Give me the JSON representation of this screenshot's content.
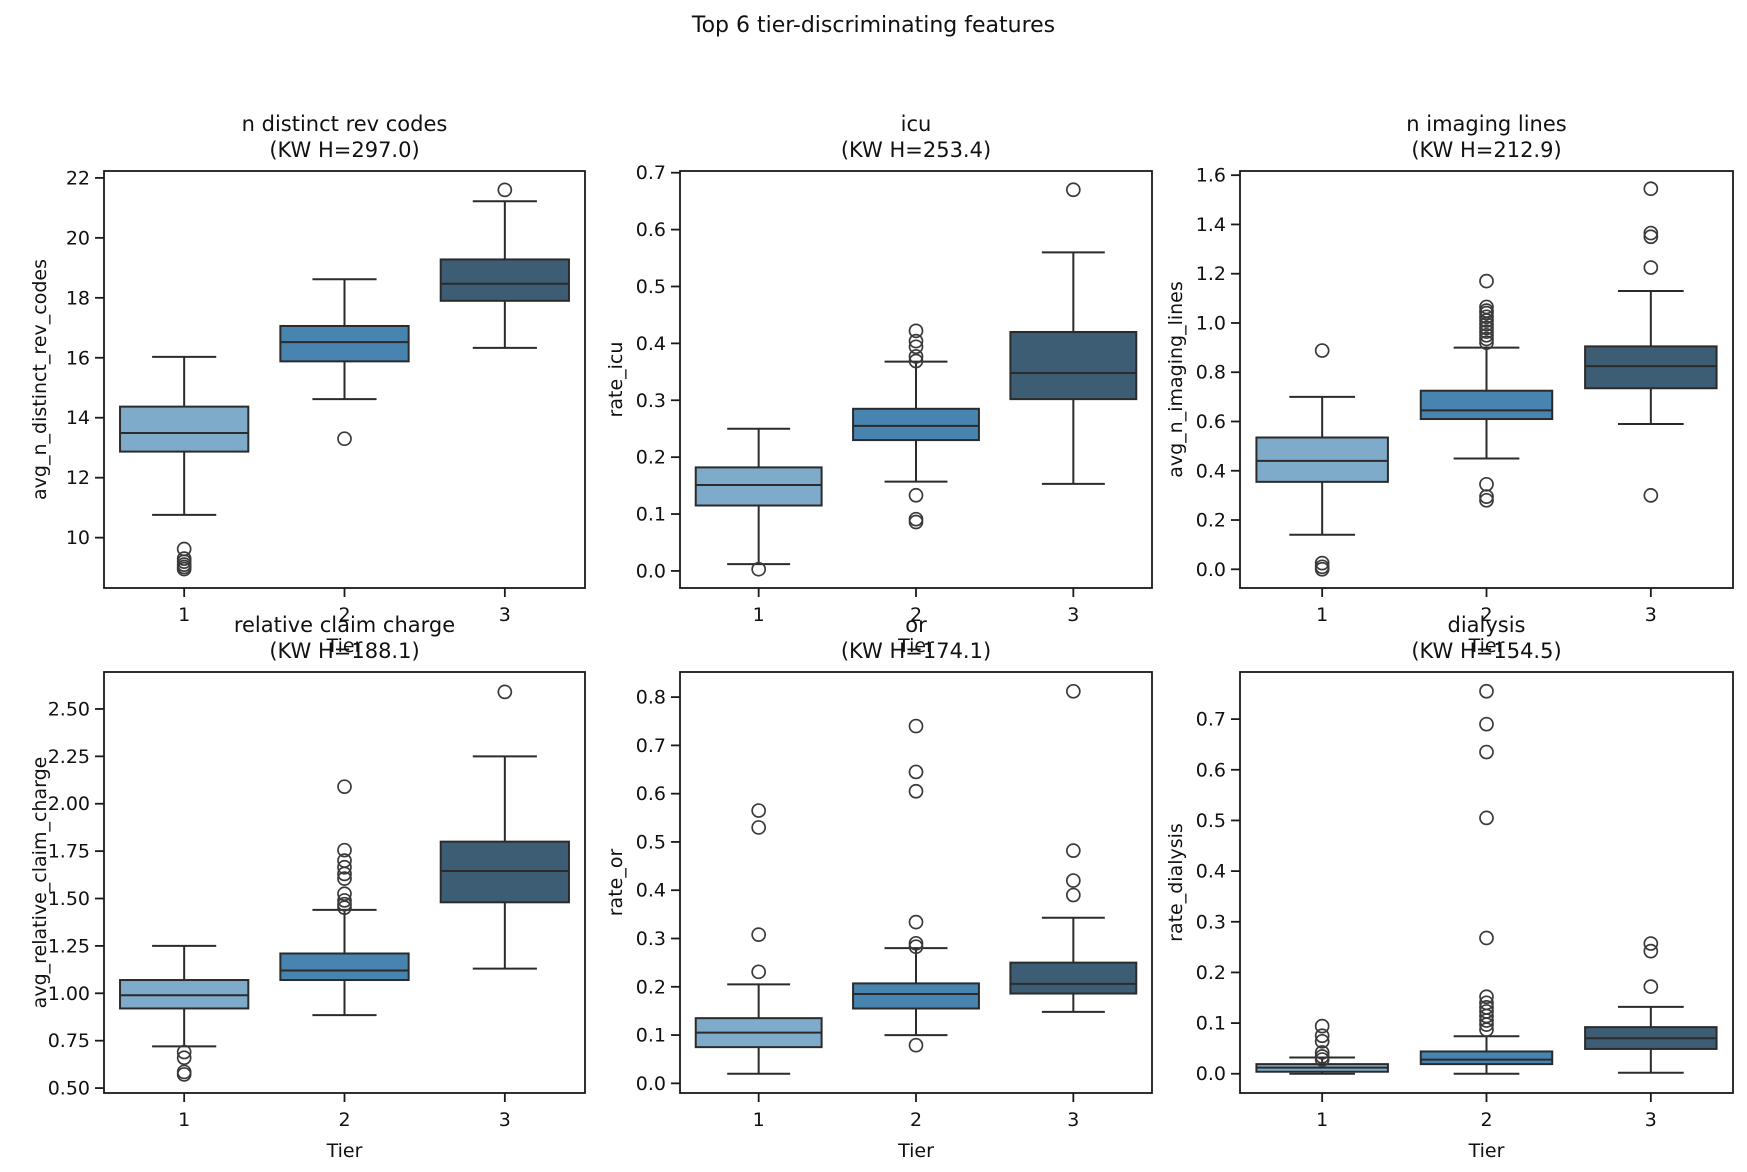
{
  "chart_data": {
    "type": "boxplot",
    "suptitle": "Top 6 tier-discriminating features",
    "grid": {
      "rows": 2,
      "cols": 3
    },
    "xlabel": "Tier",
    "categories": [
      "1",
      "2",
      "3"
    ],
    "palette": [
      "#7FABCB",
      "#4784B0",
      "#3D5D75"
    ],
    "edge_color": "#2B2B2B",
    "flier_color": "#3A3A3A",
    "spine_color": "#1A1A1A",
    "subplots": [
      {
        "id": "n-distinct-rev-codes",
        "title": "n distinct rev codes",
        "subtitle": "(KW H=297.0)",
        "ylabel": "avg_n_distinct_rev_codes",
        "ylim": [
          8.32,
          22.23
        ],
        "yticks": [
          {
            "value": 10,
            "label": "10"
          },
          {
            "value": 12,
            "label": "12"
          },
          {
            "value": 14,
            "label": "14"
          },
          {
            "value": 16,
            "label": "16"
          },
          {
            "value": 18,
            "label": "18"
          },
          {
            "value": 20,
            "label": "20"
          },
          {
            "value": 22,
            "label": "22"
          }
        ],
        "boxes": [
          {
            "tier": "1",
            "whislo": 10.76,
            "q1": 12.87,
            "med": 13.49,
            "q3": 14.37,
            "whishi": 16.03,
            "fliers": [
              9.62,
              9.3,
              9.2,
              9.1,
              9.02,
              8.95
            ]
          },
          {
            "tier": "2",
            "whislo": 14.62,
            "q1": 15.88,
            "med": 16.52,
            "q3": 17.06,
            "whishi": 18.62,
            "fliers": [
              13.3
            ]
          },
          {
            "tier": "3",
            "whislo": 16.33,
            "q1": 17.9,
            "med": 18.47,
            "q3": 19.28,
            "whishi": 21.22,
            "fliers": [
              21.6
            ]
          }
        ]
      },
      {
        "id": "icu",
        "title": "icu",
        "subtitle": "(KW H=253.4)",
        "ylabel": "rate_icu",
        "ylim": [
          -0.03,
          0.703
        ],
        "yticks": [
          {
            "value": 0.0,
            "label": "0.0"
          },
          {
            "value": 0.1,
            "label": "0.1"
          },
          {
            "value": 0.2,
            "label": "0.2"
          },
          {
            "value": 0.3,
            "label": "0.3"
          },
          {
            "value": 0.4,
            "label": "0.4"
          },
          {
            "value": 0.5,
            "label": "0.5"
          },
          {
            "value": 0.6,
            "label": "0.6"
          },
          {
            "value": 0.7,
            "label": "0.7"
          }
        ],
        "boxes": [
          {
            "tier": "1",
            "whislo": 0.012,
            "q1": 0.115,
            "med": 0.151,
            "q3": 0.182,
            "whishi": 0.25,
            "fliers": [
              0.003
            ]
          },
          {
            "tier": "2",
            "whislo": 0.157,
            "q1": 0.23,
            "med": 0.255,
            "q3": 0.285,
            "whishi": 0.368,
            "fliers": [
              0.422,
              0.404,
              0.394,
              0.377,
              0.369,
              0.133,
              0.091,
              0.086
            ]
          },
          {
            "tier": "3",
            "whislo": 0.153,
            "q1": 0.302,
            "med": 0.348,
            "q3": 0.42,
            "whishi": 0.56,
            "fliers": [
              0.67
            ]
          }
        ]
      },
      {
        "id": "n-imaging-lines",
        "title": "n imaging lines",
        "subtitle": "(KW H=212.9)",
        "ylabel": "avg_n_imaging_lines",
        "ylim": [
          -0.076,
          1.617
        ],
        "yticks": [
          {
            "value": 0.0,
            "label": "0.0"
          },
          {
            "value": 0.2,
            "label": "0.2"
          },
          {
            "value": 0.4,
            "label": "0.4"
          },
          {
            "value": 0.6,
            "label": "0.6"
          },
          {
            "value": 0.8,
            "label": "0.8"
          },
          {
            "value": 1.0,
            "label": "1.0"
          },
          {
            "value": 1.2,
            "label": "1.2"
          },
          {
            "value": 1.4,
            "label": "1.4"
          },
          {
            "value": 1.6,
            "label": "1.6"
          }
        ],
        "boxes": [
          {
            "tier": "1",
            "whislo": 0.14,
            "q1": 0.355,
            "med": 0.44,
            "q3": 0.535,
            "whishi": 0.7,
            "fliers": [
              0.888,
              0.025,
              0.01,
              0.0
            ]
          },
          {
            "tier": "2",
            "whislo": 0.45,
            "q1": 0.61,
            "med": 0.645,
            "q3": 0.725,
            "whishi": 0.9,
            "fliers": [
              1.17,
              1.065,
              1.05,
              1.04,
              1.025,
              1.01,
              0.995,
              0.98,
              0.965,
              0.95,
              0.935,
              0.92,
              0.345,
              0.295,
              0.28
            ]
          },
          {
            "tier": "3",
            "whislo": 0.59,
            "q1": 0.735,
            "med": 0.825,
            "q3": 0.905,
            "whishi": 1.13,
            "fliers": [
              1.545,
              1.365,
              1.35,
              1.225,
              0.3
            ]
          }
        ]
      },
      {
        "id": "relative-claim-charge",
        "title": "relative claim charge",
        "subtitle": "(KW H=188.1)",
        "ylabel": "avg_relative_claim_charge",
        "ylim": [
          0.474,
          2.695
        ],
        "yticks": [
          {
            "value": 0.5,
            "label": "0.50"
          },
          {
            "value": 0.75,
            "label": "0.75"
          },
          {
            "value": 1.0,
            "label": "1.00"
          },
          {
            "value": 1.25,
            "label": "1.25"
          },
          {
            "value": 1.5,
            "label": "1.50"
          },
          {
            "value": 1.75,
            "label": "1.75"
          },
          {
            "value": 2.0,
            "label": "2.00"
          },
          {
            "value": 2.25,
            "label": "2.25"
          },
          {
            "value": 2.5,
            "label": "2.50"
          }
        ],
        "boxes": [
          {
            "tier": "1",
            "whislo": 0.72,
            "q1": 0.92,
            "med": 0.99,
            "q3": 1.07,
            "whishi": 1.25,
            "fliers": [
              0.69,
              0.66,
              0.585,
              0.572
            ]
          },
          {
            "tier": "2",
            "whislo": 0.885,
            "q1": 1.07,
            "med": 1.12,
            "q3": 1.21,
            "whishi": 1.44,
            "fliers": [
              2.09,
              1.755,
              1.7,
              1.665,
              1.63,
              1.605,
              1.525,
              1.49,
              1.47,
              1.452
            ]
          },
          {
            "tier": "3",
            "whislo": 1.13,
            "q1": 1.48,
            "med": 1.645,
            "q3": 1.8,
            "whishi": 2.25,
            "fliers": [
              2.59
            ]
          }
        ]
      },
      {
        "id": "or",
        "title": "or",
        "subtitle": "(KW H=174.1)",
        "ylabel": "rate_or",
        "ylim": [
          -0.02,
          0.852
        ],
        "yticks": [
          {
            "value": 0.0,
            "label": "0.0"
          },
          {
            "value": 0.1,
            "label": "0.1"
          },
          {
            "value": 0.2,
            "label": "0.2"
          },
          {
            "value": 0.3,
            "label": "0.3"
          },
          {
            "value": 0.4,
            "label": "0.4"
          },
          {
            "value": 0.5,
            "label": "0.5"
          },
          {
            "value": 0.6,
            "label": "0.6"
          },
          {
            "value": 0.7,
            "label": "0.7"
          },
          {
            "value": 0.8,
            "label": "0.8"
          }
        ],
        "boxes": [
          {
            "tier": "1",
            "whislo": 0.02,
            "q1": 0.075,
            "med": 0.105,
            "q3": 0.135,
            "whishi": 0.205,
            "fliers": [
              0.565,
              0.53,
              0.308,
              0.231
            ]
          },
          {
            "tier": "2",
            "whislo": 0.1,
            "q1": 0.155,
            "med": 0.185,
            "q3": 0.207,
            "whishi": 0.28,
            "fliers": [
              0.74,
              0.645,
              0.605,
              0.334,
              0.29,
              0.283,
              0.079
            ]
          },
          {
            "tier": "3",
            "whislo": 0.148,
            "q1": 0.186,
            "med": 0.206,
            "q3": 0.25,
            "whishi": 0.343,
            "fliers": [
              0.812,
              0.482,
              0.42,
              0.39
            ]
          }
        ]
      },
      {
        "id": "dialysis",
        "title": "dialysis",
        "subtitle": "(KW H=154.5)",
        "ylabel": "rate_dialysis",
        "ylim": [
          -0.038,
          0.793
        ],
        "yticks": [
          {
            "value": 0.0,
            "label": "0.0"
          },
          {
            "value": 0.1,
            "label": "0.1"
          },
          {
            "value": 0.2,
            "label": "0.2"
          },
          {
            "value": 0.3,
            "label": "0.3"
          },
          {
            "value": 0.4,
            "label": "0.4"
          },
          {
            "value": 0.5,
            "label": "0.5"
          },
          {
            "value": 0.6,
            "label": "0.6"
          },
          {
            "value": 0.7,
            "label": "0.7"
          }
        ],
        "boxes": [
          {
            "tier": "1",
            "whislo": 0.0,
            "q1": 0.004,
            "med": 0.012,
            "q3": 0.019,
            "whishi": 0.032,
            "fliers": [
              0.094,
              0.075,
              0.064,
              0.042,
              0.034,
              0.028
            ]
          },
          {
            "tier": "2",
            "whislo": 0.0,
            "q1": 0.019,
            "med": 0.028,
            "q3": 0.044,
            "whishi": 0.074,
            "fliers": [
              0.755,
              0.69,
              0.635,
              0.505,
              0.268,
              0.152,
              0.14,
              0.131,
              0.123,
              0.114,
              0.105,
              0.097,
              0.087
            ]
          },
          {
            "tier": "3",
            "whislo": 0.002,
            "q1": 0.049,
            "med": 0.07,
            "q3": 0.092,
            "whishi": 0.132,
            "fliers": [
              0.257,
              0.242,
              0.172
            ]
          }
        ]
      }
    ]
  }
}
